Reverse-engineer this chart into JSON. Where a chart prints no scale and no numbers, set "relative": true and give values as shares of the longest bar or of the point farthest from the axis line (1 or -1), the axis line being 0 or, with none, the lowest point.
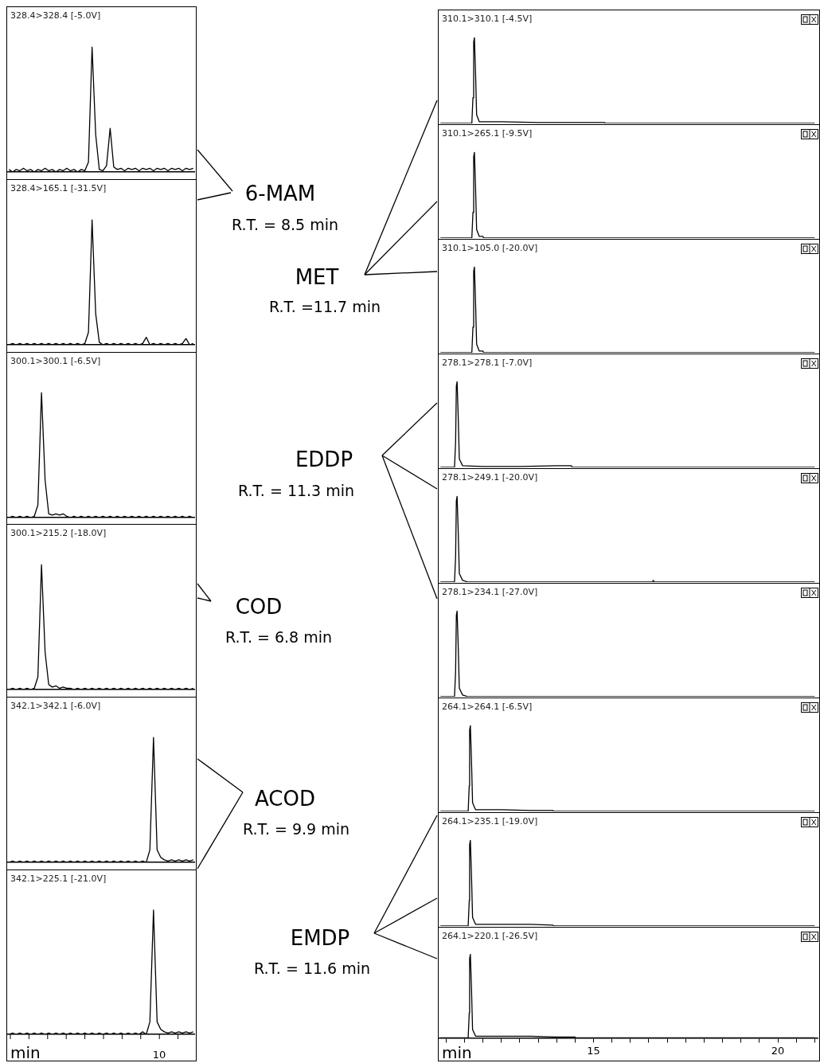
{
  "chart_data": [
    {
      "type": "line",
      "title": "328.4>328.4 [-5.0V]",
      "relative": true,
      "tick_labels": false,
      "annotations": [
        "6-MAM",
        "R.T. = 8.5 min"
      ],
      "categories": [
        null,
        null,
        null,
        null,
        null,
        null,
        null,
        null,
        null,
        null,
        null,
        null,
        null,
        null,
        null,
        null,
        null,
        null,
        null,
        null,
        null,
        null,
        null,
        null,
        null,
        null,
        null,
        null,
        null,
        null,
        null,
        null,
        null,
        null,
        null,
        null,
        null,
        null,
        null,
        null,
        null,
        null,
        null,
        null,
        null,
        null,
        null,
        null,
        null,
        null,
        null,
        null
      ],
      "series": [
        {
          "color": "#000000",
          "values": [
            0.02,
            0,
            0.02,
            0.01,
            0.03,
            0.01,
            0.02,
            0,
            0.02,
            0.01,
            0.03,
            0.01,
            0.02,
            0,
            0.02,
            0.01,
            0.03,
            0.01,
            0.02,
            0,
            0.02,
            0.01,
            0.08,
            1,
            0.3,
            0.02,
            0.01,
            0.05,
            0.35,
            0.04,
            0.02,
            0.03,
            0.01,
            0.03,
            0.02,
            0.03,
            0.01,
            0.03,
            0.02,
            0.03,
            0.01,
            0.03,
            0.02,
            0.03,
            0.01,
            0.03,
            0.02,
            0.03,
            0.01,
            0.03,
            0.02,
            0.03
          ]
        }
      ]
    },
    {
      "type": "line",
      "title": "328.4>165.1 [-31.5V]",
      "relative": true,
      "tick_labels": false,
      "categories": [
        null,
        null,
        null,
        null,
        null,
        null,
        null,
        null,
        null,
        null,
        null,
        null,
        null,
        null,
        null,
        null,
        null,
        null,
        null,
        null,
        null,
        null,
        null,
        null,
        null,
        null,
        null,
        null,
        null,
        null,
        null,
        null,
        null,
        null,
        null,
        null,
        null,
        null,
        null,
        null,
        null,
        null,
        null,
        null,
        null,
        null,
        null,
        null,
        null,
        null,
        null,
        null
      ],
      "series": [
        {
          "color": "#000000",
          "values": [
            0,
            0.01,
            0,
            0.01,
            0,
            0.01,
            0,
            0.01,
            0,
            0.01,
            0,
            0.01,
            0,
            0.01,
            0,
            0.01,
            0,
            0.01,
            0,
            0.01,
            0,
            0.01,
            0.1,
            1,
            0.25,
            0.02,
            0,
            0.01,
            0,
            0.01,
            0,
            0.01,
            0,
            0.01,
            0,
            0.01,
            0,
            0.01,
            0.06,
            0,
            0.01,
            0,
            0.01,
            0,
            0.01,
            0,
            0.01,
            0,
            0.01,
            0.05,
            0,
            0.01
          ]
        }
      ]
    },
    {
      "type": "line",
      "title": "300.1>300.1 [-6.5V]",
      "relative": true,
      "tick_labels": false,
      "annotations": [
        "COD",
        "R.T. = 6.8 min"
      ],
      "categories": [
        null,
        null,
        null,
        null,
        null,
        null,
        null,
        null,
        null,
        null,
        null,
        null,
        null,
        null,
        null,
        null,
        null,
        null,
        null,
        null,
        null,
        null,
        null,
        null,
        null,
        null,
        null,
        null,
        null,
        null,
        null,
        null,
        null,
        null,
        null,
        null,
        null,
        null,
        null,
        null,
        null,
        null,
        null,
        null,
        null,
        null,
        null,
        null,
        null,
        null,
        null,
        null
      ],
      "series": [
        {
          "color": "#000000",
          "values": [
            0,
            0.01,
            0,
            0.01,
            0,
            0.01,
            0,
            0.01,
            0.1,
            1,
            0.3,
            0.03,
            0.02,
            0.03,
            0.02,
            0.03,
            0.01,
            0,
            0.01,
            0,
            0.01,
            0,
            0.01,
            0,
            0.01,
            0,
            0.01,
            0,
            0.01,
            0,
            0.01,
            0,
            0.01,
            0,
            0.01,
            0,
            0.01,
            0,
            0.01,
            0,
            0.01,
            0,
            0.01,
            0,
            0.01,
            0,
            0.01,
            0,
            0.01,
            0,
            0.01,
            0
          ]
        }
      ]
    },
    {
      "type": "line",
      "title": "300.1>215.2 [-18.0V]",
      "relative": true,
      "tick_labels": false,
      "categories": [
        null,
        null,
        null,
        null,
        null,
        null,
        null,
        null,
        null,
        null,
        null,
        null,
        null,
        null,
        null,
        null,
        null,
        null,
        null,
        null,
        null,
        null,
        null,
        null,
        null,
        null,
        null,
        null,
        null,
        null,
        null,
        null,
        null,
        null,
        null,
        null,
        null,
        null,
        null,
        null,
        null,
        null,
        null,
        null,
        null,
        null,
        null,
        null,
        null,
        null,
        null,
        null
      ],
      "series": [
        {
          "color": "#000000",
          "values": [
            0,
            0.01,
            0,
            0.01,
            0,
            0.01,
            0,
            0.01,
            0.1,
            1,
            0.3,
            0.04,
            0.02,
            0.03,
            0.01,
            0.02,
            0.01,
            0.01,
            0,
            0.01,
            0,
            0.01,
            0,
            0.01,
            0,
            0.01,
            0,
            0.01,
            0,
            0.01,
            0,
            0.01,
            0,
            0.01,
            0,
            0.01,
            0,
            0.01,
            0,
            0.01,
            0,
            0.01,
            0,
            0.01,
            0,
            0.01,
            0,
            0.01,
            0,
            0.01,
            0,
            0.01
          ]
        }
      ]
    },
    {
      "type": "line",
      "title": "342.1>342.1 [-6.0V]",
      "relative": true,
      "tick_labels": false,
      "annotations": [
        "ACOD",
        "R.T. = 9.9 min"
      ],
      "categories": [
        null,
        null,
        null,
        null,
        null,
        null,
        null,
        null,
        null,
        null,
        null,
        null,
        null,
        null,
        null,
        null,
        null,
        null,
        null,
        null,
        null,
        null,
        null,
        null,
        null,
        null,
        null,
        null,
        null,
        null,
        null,
        null,
        null,
        null,
        null,
        null,
        null,
        null,
        null,
        null,
        null,
        null,
        null,
        null,
        null,
        null,
        null,
        null,
        null,
        null,
        null,
        null
      ],
      "series": [
        {
          "color": "#000000",
          "values": [
            0,
            0.01,
            0,
            0.01,
            0,
            0.01,
            0,
            0.01,
            0,
            0.01,
            0,
            0.01,
            0,
            0.01,
            0,
            0.01,
            0,
            0.01,
            0,
            0.01,
            0,
            0.01,
            0,
            0.01,
            0,
            0.01,
            0,
            0.01,
            0,
            0.01,
            0,
            0.01,
            0,
            0.01,
            0,
            0.01,
            0,
            0.01,
            0,
            0.1,
            1,
            0.1,
            0.04,
            0.02,
            0.01,
            0.02,
            0.01,
            0.02,
            0.01,
            0.02,
            0.01,
            0.02
          ]
        }
      ]
    },
    {
      "type": "line",
      "title": "342.1>225.1 [-21.0V]",
      "relative": true,
      "tick_labels": false,
      "xlabel": "min",
      "annotations": [
        "10"
      ],
      "categories": [
        null,
        null,
        null,
        null,
        null,
        null,
        null,
        null,
        null,
        null,
        null,
        null,
        null,
        null,
        null,
        null,
        null,
        null,
        null,
        null,
        null,
        null,
        null,
        null,
        null,
        null,
        null,
        null,
        null,
        null,
        null,
        null,
        null,
        null,
        null,
        null,
        null,
        null,
        null,
        null,
        null,
        null,
        null,
        null,
        null,
        null,
        null,
        null,
        null,
        null,
        null,
        null
      ],
      "series": [
        {
          "color": "#000000",
          "values": [
            0,
            0.01,
            0,
            0.01,
            0,
            0.01,
            0,
            0.01,
            0,
            0.01,
            0,
            0.01,
            0,
            0.01,
            0,
            0.01,
            0,
            0.01,
            0,
            0.01,
            0,
            0.01,
            0,
            0.01,
            0,
            0.01,
            0,
            0.01,
            0,
            0.01,
            0,
            0.01,
            0,
            0.01,
            0,
            0.01,
            0,
            0.02,
            0,
            0.1,
            1,
            0.1,
            0.04,
            0.02,
            0.01,
            0.02,
            0.01,
            0.02,
            0.01,
            0.02,
            0.01,
            0.02
          ]
        }
      ]
    },
    {
      "type": "line",
      "title": "310.1>310.1 [-4.5V]",
      "relative": true,
      "xlim": [
        10.8,
        21.1
      ],
      "tick_labels": false,
      "annotations": [
        "MET",
        "R.T. =11.7 min"
      ],
      "x": [
        10.85,
        11.7,
        11.73,
        11.75,
        11.77,
        11.8,
        11.83,
        11.9,
        12.5,
        13.5,
        15.3,
        15.32,
        21.0
      ],
      "series": [
        {
          "color": "#000000",
          "values": [
            0,
            0,
            0.3,
            0.95,
            1,
            0.6,
            0.1,
            0.02,
            0.02,
            0.01,
            0.01,
            0,
            0
          ]
        }
      ]
    },
    {
      "type": "line",
      "title": "310.1>265.1 [-9.5V]",
      "relative": true,
      "xlim": [
        10.8,
        21.1
      ],
      "tick_labels": false,
      "x": [
        10.85,
        11.7,
        11.73,
        11.75,
        11.77,
        11.8,
        11.83,
        11.9,
        12.0,
        12.02,
        21.0
      ],
      "series": [
        {
          "color": "#000000",
          "values": [
            0,
            0,
            0.3,
            0.95,
            1,
            0.6,
            0.1,
            0.02,
            0.02,
            0,
            0
          ]
        }
      ]
    },
    {
      "type": "line",
      "title": "310.1>105.0 [-20.0V]",
      "relative": true,
      "xlim": [
        10.8,
        21.1
      ],
      "tick_labels": false,
      "x": [
        10.85,
        11.7,
        11.73,
        11.75,
        11.77,
        11.8,
        11.83,
        11.9,
        12.0,
        12.02,
        21.0
      ],
      "series": [
        {
          "color": "#000000",
          "values": [
            0,
            0,
            0.3,
            0.95,
            1,
            0.6,
            0.1,
            0.02,
            0.02,
            0,
            0
          ]
        }
      ]
    },
    {
      "type": "line",
      "title": "278.1>278.1 [-7.0V]",
      "relative": true,
      "xlim": [
        10.8,
        21.1
      ],
      "tick_labels": false,
      "annotations": [
        "EDDP",
        "R.T. = 11.3 min"
      ],
      "x": [
        10.85,
        11.23,
        11.26,
        11.28,
        11.3,
        11.33,
        11.36,
        11.45,
        12.0,
        13.0,
        14.0,
        14.4,
        14.42,
        21.0
      ],
      "series": [
        {
          "color": "#000000",
          "values": [
            0,
            0,
            0.3,
            0.95,
            1,
            0.6,
            0.1,
            0.02,
            0.01,
            0.01,
            0.02,
            0.02,
            0,
            0
          ]
        }
      ]
    },
    {
      "type": "line",
      "title": "278.1>249.1 [-20.0V]",
      "relative": true,
      "xlim": [
        10.8,
        21.1
      ],
      "tick_labels": false,
      "x": [
        10.85,
        11.23,
        11.26,
        11.28,
        11.3,
        11.33,
        11.36,
        11.45,
        11.6,
        16.6,
        16.62,
        16.65,
        21.0
      ],
      "series": [
        {
          "color": "#000000",
          "values": [
            0,
            0,
            0.3,
            0.95,
            1,
            0.6,
            0.1,
            0.02,
            0,
            0,
            0.02,
            0,
            0
          ]
        }
      ]
    },
    {
      "type": "line",
      "title": "278.1>234.1 [-27.0V]",
      "relative": true,
      "xlim": [
        10.8,
        21.1
      ],
      "tick_labels": false,
      "x": [
        10.85,
        11.23,
        11.26,
        11.28,
        11.3,
        11.33,
        11.36,
        11.45,
        11.6,
        21.0
      ],
      "series": [
        {
          "color": "#000000",
          "values": [
            0,
            0,
            0.3,
            0.95,
            1,
            0.6,
            0.1,
            0.02,
            0,
            0
          ]
        }
      ]
    },
    {
      "type": "line",
      "title": "264.1>264.1 [-6.5V]",
      "relative": true,
      "xlim": [
        10.8,
        21.1
      ],
      "tick_labels": false,
      "annotations": [
        "EMDP",
        "R.T. = 11.6 min"
      ],
      "x": [
        10.85,
        11.6,
        11.63,
        11.64,
        11.66,
        11.69,
        11.72,
        11.8,
        12.5,
        13.3,
        13.9,
        13.92,
        21.0
      ],
      "series": [
        {
          "color": "#000000",
          "values": [
            0,
            0,
            0.3,
            0.95,
            1,
            0.6,
            0.1,
            0.02,
            0.02,
            0.01,
            0.01,
            0,
            0
          ]
        }
      ]
    },
    {
      "type": "line",
      "title": "264.1>235.1 [-19.0V]",
      "relative": true,
      "xlim": [
        10.8,
        21.1
      ],
      "tick_labels": false,
      "x": [
        10.85,
        11.6,
        11.63,
        11.64,
        11.66,
        11.69,
        11.72,
        11.8,
        12.5,
        13.3,
        13.9,
        13.92,
        21.0
      ],
      "series": [
        {
          "color": "#000000",
          "values": [
            0,
            0,
            0.3,
            0.95,
            1,
            0.6,
            0.1,
            0.02,
            0.02,
            0.02,
            0.01,
            0,
            0
          ]
        }
      ]
    },
    {
      "type": "line",
      "title": "264.1>220.1 [-26.5V]",
      "relative": true,
      "xlim": [
        10.8,
        21.1
      ],
      "tick_labels": "x",
      "xlabel": "min",
      "xticks": [
        {
          "value": 11.0,
          "label": null
        },
        {
          "value": 11.5,
          "label": null
        },
        {
          "value": 12.0,
          "label": null
        },
        {
          "value": 12.5,
          "label": null
        },
        {
          "value": 13.0,
          "label": null
        },
        {
          "value": 13.5,
          "label": null
        },
        {
          "value": 14.0,
          "label": null
        },
        {
          "value": 14.5,
          "label": null
        },
        15,
        {
          "value": 15.5,
          "label": null
        },
        {
          "value": 16.0,
          "label": null
        },
        {
          "value": 16.5,
          "label": null
        },
        {
          "value": 17.0,
          "label": null
        },
        {
          "value": 17.5,
          "label": null
        },
        {
          "value": 18.0,
          "label": null
        },
        {
          "value": 18.5,
          "label": null
        },
        {
          "value": 19.0,
          "label": null
        },
        {
          "value": 19.5,
          "label": null
        },
        20,
        {
          "value": 20.5,
          "label": null
        },
        {
          "value": 21.0,
          "label": null
        }
      ],
      "x": [
        10.85,
        11.6,
        11.63,
        11.64,
        11.66,
        11.69,
        11.72,
        11.8,
        12.5,
        13.3,
        14.0,
        14.5,
        14.52,
        21.0
      ],
      "series": [
        {
          "color": "#000000",
          "values": [
            0,
            0,
            0.3,
            0.95,
            1,
            0.6,
            0.1,
            0.02,
            0.02,
            0.02,
            0.01,
            0.01,
            0,
            0
          ]
        }
      ]
    }
  ]
}
